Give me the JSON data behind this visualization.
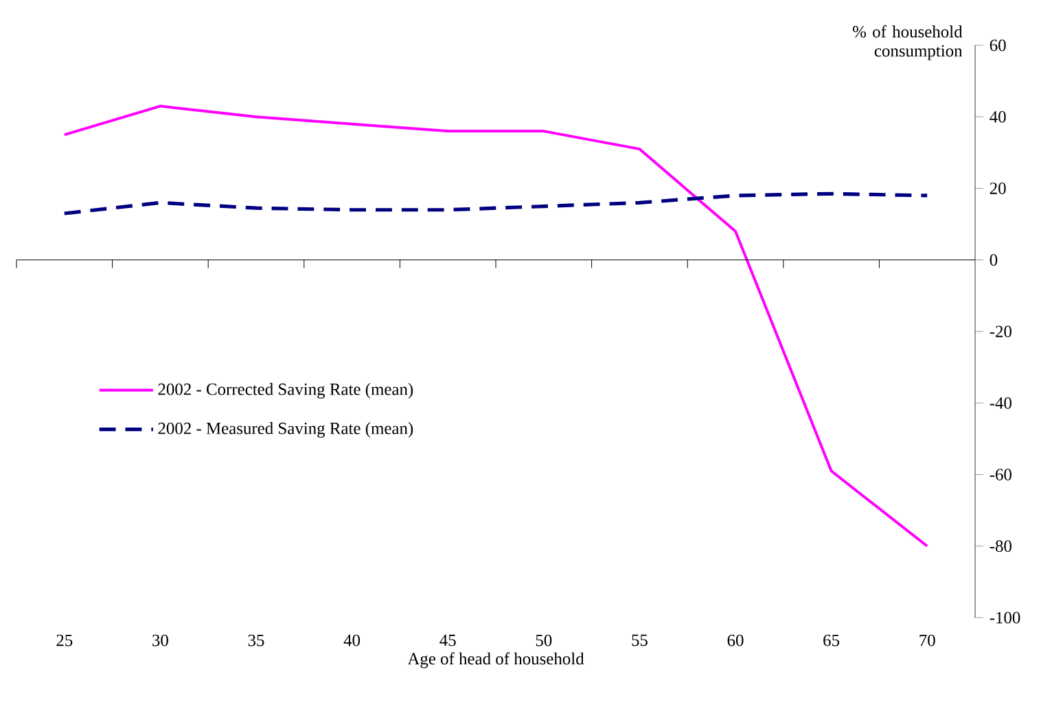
{
  "chart_data": {
    "type": "line",
    "xlabel": "Age of head of household",
    "ylabel": "% of household consumption",
    "categories": [
      "25",
      "30",
      "35",
      "40",
      "45",
      "50",
      "55",
      "60",
      "65",
      "70"
    ],
    "series": [
      {
        "name": "2002 - Corrected Saving Rate (mean)",
        "color": "#ff00ff",
        "line_style": "solid",
        "values": [
          35,
          43,
          40,
          38,
          36,
          36,
          31,
          8,
          -59,
          -80
        ]
      },
      {
        "name": "2002 - Measured Saving Rate (mean)",
        "color": "#000080",
        "line_style": "dashed",
        "values": [
          13,
          16,
          14.5,
          14,
          14,
          15,
          16,
          18,
          18.5,
          18
        ]
      }
    ],
    "ylim": [
      -100,
      60
    ],
    "yticks": [
      -100,
      -80,
      -60,
      -40,
      -20,
      0,
      20,
      40,
      60
    ],
    "legend": "left"
  }
}
